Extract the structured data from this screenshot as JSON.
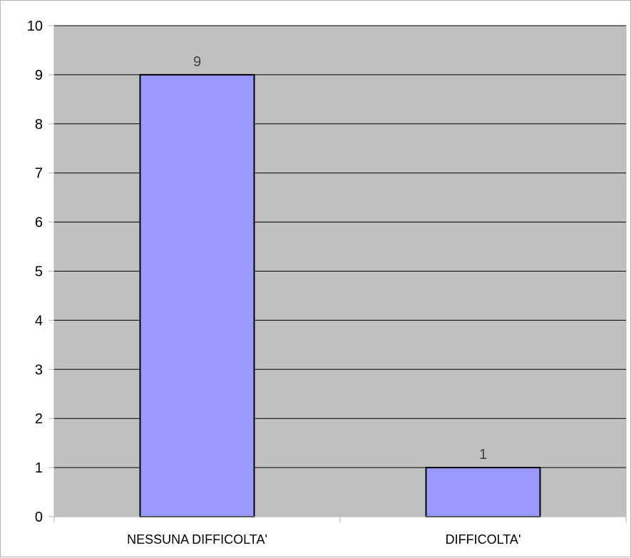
{
  "chart_data": {
    "type": "bar",
    "categories": [
      "NESSUNA DIFFICOLTA'",
      "DIFFICOLTA'"
    ],
    "values": [
      9,
      1
    ],
    "data_labels": [
      "9",
      "1"
    ],
    "title": "",
    "xlabel": "",
    "ylabel": "",
    "ylim": [
      0,
      10
    ],
    "yticks": [
      "0",
      "1",
      "2",
      "3",
      "4",
      "5",
      "6",
      "7",
      "8",
      "9",
      "10"
    ],
    "grid": true,
    "legend": "none",
    "colors": {
      "bar_fill": "#9999ff",
      "bar_stroke": "#000000",
      "plot_background": "#c0c0c0",
      "gridline": "#000000"
    }
  }
}
